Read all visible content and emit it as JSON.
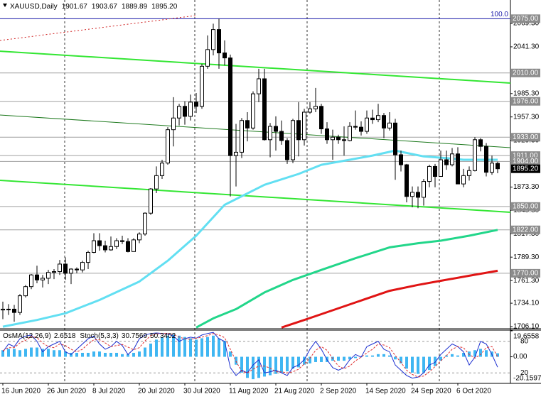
{
  "chart_data": [
    {
      "type": "candlestick",
      "symbol": "XAUUSD,Daily",
      "categories": [
        "16 Jun 2020",
        null,
        null,
        null,
        null,
        null,
        null,
        null,
        "26 Jun 2020",
        null,
        null,
        null,
        null,
        null,
        null,
        null,
        "8 Jul 2020",
        null,
        null,
        null,
        null,
        null,
        null,
        null,
        "20 Jul 2020",
        null,
        null,
        null,
        null,
        null,
        null,
        null,
        "30 Jul 2020",
        null,
        null,
        null,
        null,
        null,
        null,
        null,
        "11 Aug 2020",
        null,
        null,
        null,
        null,
        null,
        null,
        null,
        "21 Aug 2020",
        null,
        null,
        null,
        null,
        null,
        null,
        null,
        "2 Sep 2020",
        null,
        null,
        null,
        null,
        null,
        null,
        null,
        "14 Sep 2020",
        null,
        null,
        null,
        null,
        null,
        null,
        null,
        "24 Sep 2020",
        null,
        null,
        null,
        null,
        null,
        null,
        null,
        "6 Oct 2020",
        null,
        null,
        null,
        null,
        null,
        null,
        null
      ],
      "open": [
        1726,
        1727,
        1727,
        1723,
        1743,
        1754,
        1768,
        1762,
        1764,
        1771,
        1772,
        1781,
        1770,
        1775,
        1774,
        1783,
        1795,
        1809,
        1803,
        1798,
        1802,
        1809,
        1808,
        1796,
        1810,
        1817,
        1842,
        1871,
        1887,
        1902,
        1942,
        1956,
        1970,
        1958,
        1975,
        1970,
        2018,
        2038,
        2062,
        2034,
        2028,
        1911,
        1915,
        1953,
        1944,
        1985,
        2003,
        1930,
        1946,
        1940,
        1929,
        1906,
        1953,
        1930,
        1963,
        1967,
        1970,
        1943,
        1930,
        1933,
        1930,
        1929,
        1946,
        1945,
        1940,
        1956,
        1954,
        1959,
        1944,
        1950,
        1912,
        1900,
        1862,
        1867,
        1861,
        1880,
        1898,
        1886,
        1906,
        1900,
        1913,
        1877,
        1887,
        1893,
        1930,
        1922,
        1891,
        1901.67
      ],
      "high": [
        1736,
        1733,
        1732,
        1745,
        1756,
        1769,
        1779,
        1768,
        1774,
        1775,
        1786,
        1789,
        1776,
        1777,
        1785,
        1797,
        1818,
        1818,
        1809,
        1814,
        1812,
        1815,
        1812,
        1812,
        1819,
        1843,
        1872,
        1898,
        1906,
        1945,
        1981,
        1973,
        1976,
        1984,
        1986,
        2021,
        2055,
        2069,
        2075,
        2049,
        2032,
        1949,
        1956,
        1963,
        1988,
        2015,
        2015,
        1950,
        1958,
        1953,
        1932,
        1955,
        1975,
        1967,
        1975,
        1992,
        1973,
        1951,
        1942,
        1936,
        1946,
        1951,
        1965,
        1952,
        1965,
        1966,
        1973,
        1962,
        1963,
        1955,
        1917,
        1901,
        1874,
        1874,
        1883,
        1900,
        1901,
        1917,
        1917,
        1920,
        1921,
        1895,
        1898,
        1933,
        1932,
        1926,
        1911,
        1903.67
      ],
      "low": [
        1715,
        1720,
        1712,
        1720,
        1741,
        1751,
        1758,
        1753,
        1757,
        1763,
        1768,
        1762,
        1757,
        1770,
        1771,
        1775,
        1794,
        1797,
        1795,
        1797,
        1799,
        1805,
        1795,
        1796,
        1806,
        1815,
        1840,
        1866,
        1883,
        1900,
        1922,
        1947,
        1948,
        1953,
        1962,
        1967,
        2015,
        2031,
        2015,
        2019,
        1862,
        1874,
        1908,
        1928,
        1942,
        1975,
        1929,
        1909,
        1917,
        1924,
        1901,
        1902,
        1910,
        1923,
        1961,
        1963,
        1937,
        1925,
        1906,
        1925,
        1911,
        1928,
        1942,
        1935,
        1937,
        1949,
        1951,
        1932,
        1941,
        1882,
        1892,
        1855,
        1849,
        1848,
        1851,
        1873,
        1873,
        1886,
        1894,
        1898,
        1877,
        1873,
        1881,
        1892,
        1916,
        1886,
        1888,
        1889.89
      ],
      "close": [
        1727,
        1727,
        1723,
        1743,
        1754,
        1768,
        1762,
        1764,
        1771,
        1772,
        1781,
        1770,
        1775,
        1774,
        1783,
        1795,
        1809,
        1803,
        1798,
        1802,
        1809,
        1808,
        1796,
        1810,
        1817,
        1842,
        1871,
        1887,
        1902,
        1942,
        1956,
        1970,
        1958,
        1975,
        1970,
        2018,
        2038,
        2062,
        2034,
        2028,
        1911,
        1915,
        1953,
        1944,
        1985,
        2003,
        1930,
        1946,
        1940,
        1929,
        1906,
        1953,
        1930,
        1963,
        1967,
        1970,
        1943,
        1930,
        1933,
        1930,
        1929,
        1946,
        1945,
        1940,
        1956,
        1954,
        1959,
        1944,
        1950,
        1912,
        1900,
        1862,
        1867,
        1861,
        1880,
        1898,
        1886,
        1906,
        1900,
        1913,
        1877,
        1887,
        1893,
        1930,
        1922,
        1891,
        1902,
        1895.2
      ],
      "up_color": "#ffffff",
      "down_color": "#000000",
      "xlim": [
        -0.5,
        89.25
      ],
      "ylim": [
        1704.4,
        2097.4
      ],
      "yticks": [
        {
          "value": 2069.3,
          "label": "2069.30"
        },
        {
          "value": 2041.3,
          "label": "2041.30"
        },
        {
          "value": 1985.3,
          "label": "1985.30"
        },
        {
          "value": 1957.3,
          "label": "1957.30"
        },
        {
          "value": 1929.3,
          "label": "1929.30"
        },
        {
          "value": 1873.3,
          "label": "1873.30"
        },
        {
          "value": 1845.3,
          "label": "1845.30"
        },
        {
          "value": 1817.3,
          "label": "1817.30"
        },
        {
          "value": 1789.3,
          "label": "1789.30"
        },
        {
          "value": 1761.3,
          "label": "1761.30"
        },
        {
          "value": 1734.1,
          "label": "1734.10"
        },
        {
          "value": 1706.1,
          "label": "1706.10"
        }
      ],
      "levels": [
        {
          "value": 2075,
          "label": "2075.00",
          "color": "#1a1aa8",
          "fib_label": "100.0"
        },
        {
          "value": 2010,
          "label": "2010.00",
          "color": "#a0a0a0"
        },
        {
          "value": 1976,
          "label": "1976.00",
          "color": "#a0a0a0"
        },
        {
          "value": 1933,
          "label": "1933.00",
          "color": "#a0a0a0"
        },
        {
          "value": 1911,
          "label": "1911.00",
          "color": "#a0a0a0"
        },
        {
          "value": 1904,
          "label": "1904.00",
          "color": "#a0a0a0"
        },
        {
          "value": 1850,
          "label": "1850.00",
          "color": "#a0a0a0"
        },
        {
          "value": 1822,
          "label": "1822.00",
          "color": "#a0a0a0"
        },
        {
          "value": 1770,
          "label": "1770.00",
          "color": "#a0a0a0"
        }
      ],
      "current_price": {
        "value": 1895.2,
        "label": "1895.20"
      },
      "moving_averages": [
        {
          "color": "#62dff2",
          "x": [
            0,
            6,
            11,
            17,
            24,
            29,
            34,
            39,
            46,
            52,
            56,
            61,
            65,
            69,
            74,
            78,
            81,
            87
          ],
          "values": [
            1706,
            1714,
            1722,
            1738,
            1760,
            1785,
            1815,
            1852,
            1876,
            1889,
            1900,
            1906,
            1911,
            1917,
            1910,
            1908,
            1906,
            1906
          ]
        },
        {
          "color": "#22d68a",
          "x": [
            34,
            37,
            41,
            46,
            51,
            56,
            62,
            68,
            73,
            77,
            82,
            87
          ],
          "values": [
            1705,
            1716,
            1727,
            1747,
            1762,
            1774,
            1788,
            1801,
            1806,
            1809,
            1815,
            1822
          ]
        },
        {
          "color": "#e01414",
          "x": [
            49,
            53,
            56,
            62,
            68,
            73,
            77,
            82,
            87
          ],
          "values": [
            1705,
            1714,
            1721,
            1735,
            1749,
            1756,
            1761,
            1767,
            1773
          ]
        }
      ],
      "trendlines": [
        {
          "color": "#33e633",
          "width": 2,
          "dashed": false,
          "x": [
            -0.5,
            89.25
          ],
          "values": [
            2036.1,
            1997.9
          ]
        },
        {
          "color": "#33e633",
          "width": 2,
          "dashed": false,
          "x": [
            -0.5,
            89.25
          ],
          "values": [
            1881.3,
            1843.05
          ]
        },
        {
          "color": "#1f7a1f",
          "width": 1,
          "dashed": false,
          "x": [
            -0.5,
            89.25
          ],
          "values": [
            1959.6,
            1920.5
          ]
        },
        {
          "color": "#d02020",
          "width": 1,
          "dashed": true,
          "x": [
            -0.5,
            33.875
          ],
          "values": [
            2048.9,
            2078.7
          ]
        }
      ]
    },
    {
      "type": "oscillator",
      "osma": {
        "name": "OsMA(12,26,9)",
        "color": "#3fb6f2",
        "values": [
          5,
          6,
          6,
          5,
          6,
          7,
          7,
          6,
          6,
          5,
          5,
          4,
          3,
          3,
          3,
          3,
          4,
          4,
          3,
          3,
          3,
          2,
          2,
          3,
          4,
          7,
          10,
          13,
          15,
          16,
          17,
          16,
          15,
          14,
          13,
          14,
          15,
          16,
          14,
          12,
          4,
          -6,
          -12,
          -16,
          -17,
          -16,
          -15,
          -14,
          -13,
          -12,
          -11,
          -9,
          -8,
          -6,
          -5,
          -4,
          -4,
          -4,
          -3,
          -3,
          -3,
          -2,
          -1,
          0,
          1,
          1,
          2,
          2,
          1,
          -2,
          -5,
          -9,
          -12,
          -13,
          -12,
          -10,
          -7,
          -3,
          1,
          2,
          1,
          3,
          4,
          5,
          6,
          5,
          4,
          2.6518
        ]
      },
      "stoch": {
        "name": "Stoch(5,3,3)",
        "main": {
          "color": "#1c2fd0",
          "values": [
            60,
            75,
            70,
            85,
            90,
            92,
            80,
            60,
            70,
            75,
            80,
            60,
            55,
            65,
            75,
            85,
            90,
            75,
            65,
            70,
            80,
            72,
            55,
            65,
            85,
            92,
            95,
            96,
            95,
            94,
            90,
            80,
            85,
            88,
            86,
            92,
            95,
            97,
            85,
            80,
            30,
            15,
            25,
            20,
            35,
            45,
            20,
            22,
            25,
            20,
            15,
            30,
            35,
            45,
            65,
            80,
            65,
            45,
            30,
            25,
            30,
            45,
            55,
            50,
            70,
            75,
            80,
            65,
            60,
            35,
            25,
            15,
            10,
            12,
            20,
            35,
            40,
            55,
            65,
            75,
            70,
            60,
            35,
            50,
            80,
            75,
            55,
            30.7569
          ]
        },
        "signal": {
          "color": "#e03030",
          "values": [
            62,
            68,
            68,
            77,
            82,
            89,
            87,
            77,
            70,
            68,
            75,
            72,
            65,
            60,
            65,
            75,
            83,
            83,
            77,
            70,
            72,
            74,
            69,
            64,
            68,
            81,
            91,
            94,
            95,
            95,
            93,
            88,
            85,
            84,
            86,
            88,
            91,
            95,
            92,
            87,
            65,
            42,
            23,
            20,
            27,
            33,
            33,
            29,
            22,
            22,
            20,
            22,
            27,
            37,
            48,
            63,
            70,
            63,
            47,
            33,
            28,
            33,
            43,
            50,
            58,
            65,
            75,
            73,
            68,
            53,
            40,
            25,
            17,
            12,
            14,
            22,
            32,
            43,
            53,
            65,
            70,
            68,
            55,
            48,
            55,
            68,
            70,
            50.3402
          ]
        }
      },
      "ylim": [
        -20.1597,
        19.6558
      ],
      "yticks": [
        19.6558,
        {
          "value": 0,
          "label": "0.00"
        },
        -20.1597
      ],
      "y2lim": [
        0,
        100
      ],
      "y2ticks": [
        80,
        20
      ]
    }
  ]
}
